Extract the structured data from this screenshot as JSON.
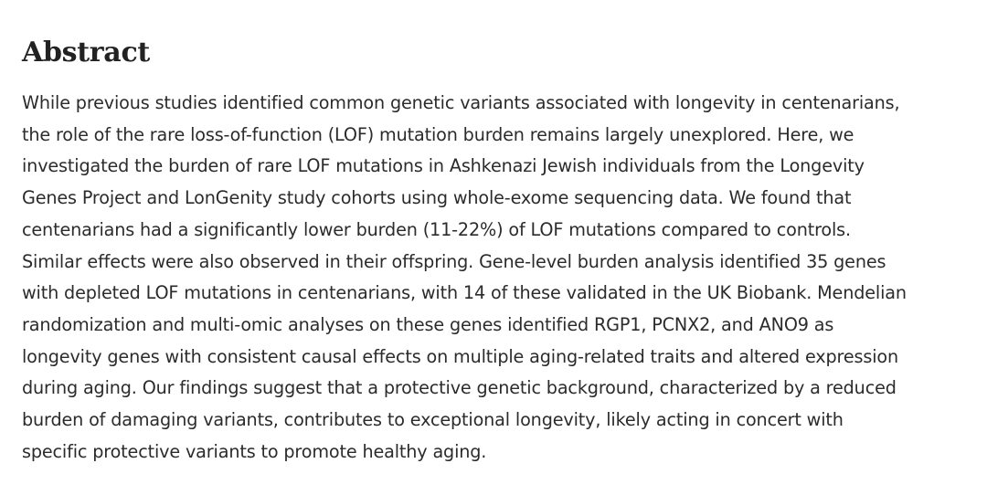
{
  "abstract": {
    "heading": "Abstract",
    "lines": [
      "While previous studies identified common genetic variants associated with longevity in centenarians,",
      "the role of the rare loss-of-function (LOF) mutation burden remains largely unexplored. Here, we",
      "investigated the burden of rare LOF mutations in Ashkenazi Jewish individuals from the Longevity",
      "Genes Project and LonGenity study cohorts using whole-exome sequencing data. We found that",
      "centenarians had a significantly lower burden (11-22%) of LOF mutations compared to controls.",
      "Similar effects were also observed in their offspring. Gene-level burden analysis identified 35 genes",
      "with depleted LOF mutations in centenarians, with 14 of these validated in the UK Biobank. Mendelian",
      "randomization and multi-omic analyses on these genes identified RGP1, PCNX2, and ANO9 as",
      "longevity genes with consistent causal effects on multiple aging-related traits and altered expression",
      "during aging. Our findings suggest that a protective genetic background, characterized by a reduced",
      "burden of damaging variants, contributes to exceptional longevity, likely acting in concert with",
      "specific protective variants to promote healthy aging."
    ]
  }
}
